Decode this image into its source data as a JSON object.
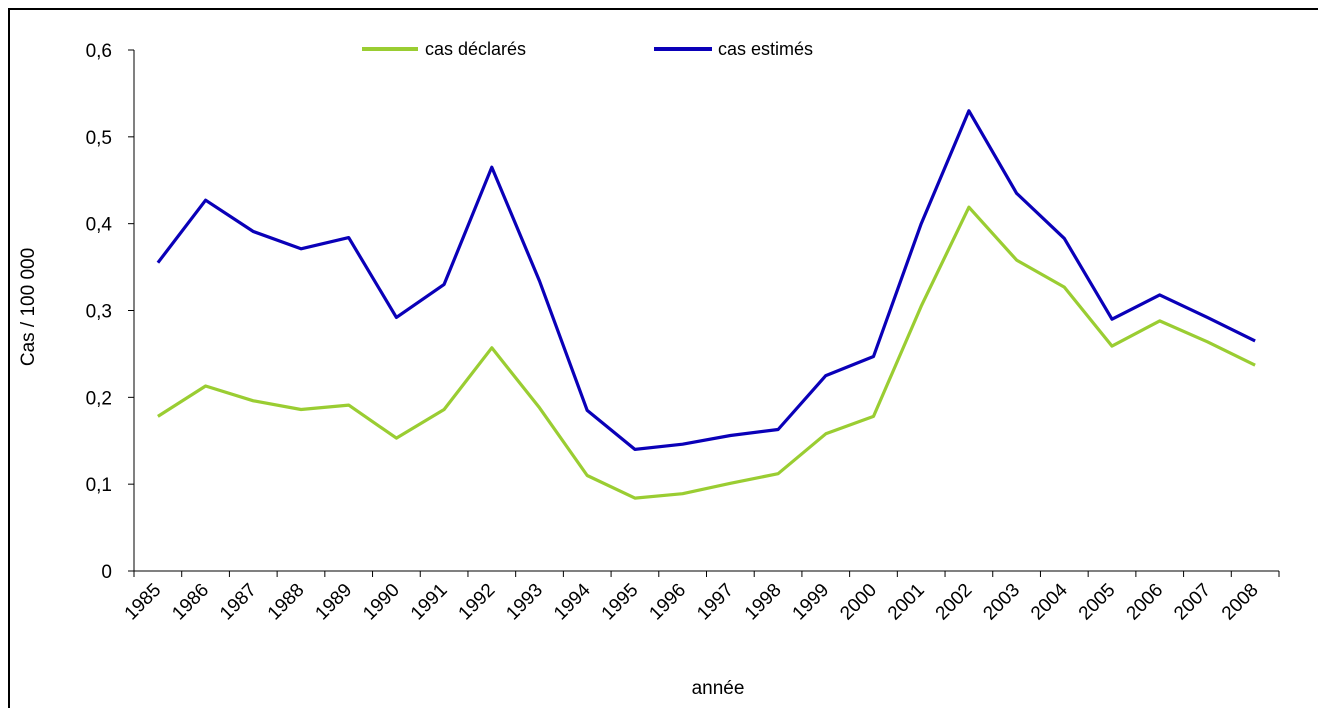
{
  "chart_data": {
    "type": "line",
    "title": "",
    "xlabel": "année",
    "ylabel": "Cas / 100 000",
    "ylim": [
      0,
      0.6
    ],
    "y_ticks": [
      "0",
      "0,1",
      "0,2",
      "0,3",
      "0,4",
      "0,5",
      "0,6"
    ],
    "y_tick_values": [
      0,
      0.1,
      0.2,
      0.3,
      0.4,
      0.5,
      0.6
    ],
    "categories": [
      "1985",
      "1986",
      "1987",
      "1988",
      "1989",
      "1990",
      "1991",
      "1992",
      "1993",
      "1994",
      "1995",
      "1996",
      "1997",
      "1998",
      "1999",
      "2000",
      "2001",
      "2002",
      "2003",
      "2004",
      "2005",
      "2006",
      "2007",
      "2008"
    ],
    "grid": false,
    "legend_position": "top-center",
    "series": [
      {
        "name": "cas déclarés",
        "color": "#9acd32",
        "values": [
          0.178,
          0.213,
          0.196,
          0.186,
          0.191,
          0.153,
          0.186,
          0.257,
          0.188,
          0.11,
          0.084,
          0.089,
          0.101,
          0.112,
          0.158,
          0.178,
          0.305,
          0.419,
          0.358,
          0.327,
          0.259,
          0.288,
          0.264,
          0.237
        ]
      },
      {
        "name": "cas estimés",
        "color": "#0a00b8",
        "values": [
          0.355,
          0.427,
          0.391,
          0.371,
          0.384,
          0.292,
          0.33,
          0.465,
          0.334,
          0.185,
          0.14,
          0.146,
          0.156,
          0.163,
          0.225,
          0.247,
          0.4,
          0.53,
          0.435,
          0.383,
          0.29,
          0.318,
          0.292,
          0.265
        ]
      }
    ]
  }
}
